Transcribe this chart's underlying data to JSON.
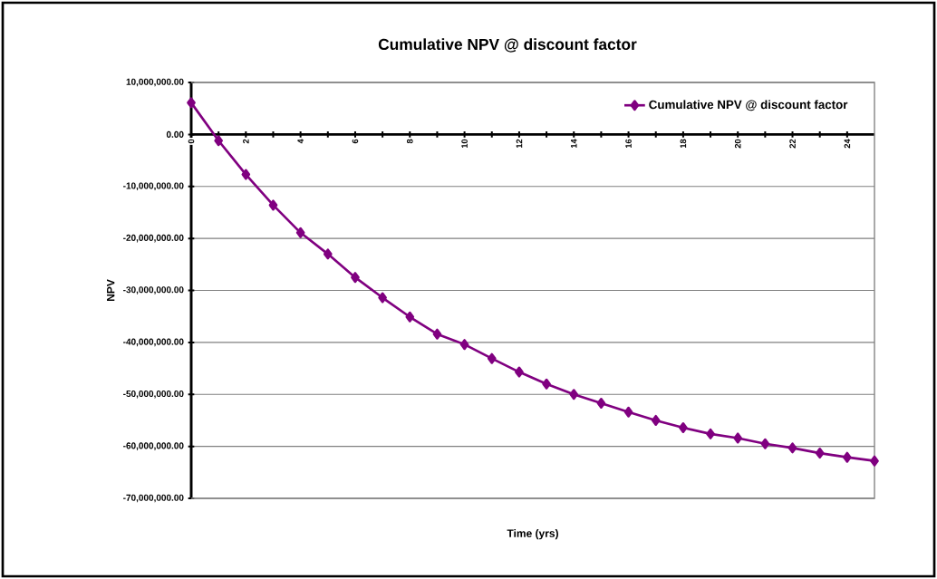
{
  "chart_data": {
    "type": "line",
    "title": "Cumulative NPV @ discount factor",
    "xlabel": "Time (yrs)",
    "ylabel": "NPV",
    "x": [
      0,
      1,
      2,
      3,
      4,
      5,
      6,
      7,
      8,
      9,
      10,
      11,
      12,
      13,
      14,
      15,
      16,
      17,
      18,
      19,
      20,
      21,
      22,
      23,
      24,
      25
    ],
    "series": [
      {
        "name": "Cumulative NPV @ discount factor",
        "color": "#800080",
        "values": [
          6100000,
          -1200000,
          -7700000,
          -13600000,
          -18900000,
          -23000000,
          -27500000,
          -31400000,
          -35100000,
          -38400000,
          -40400000,
          -43100000,
          -45700000,
          -48000000,
          -50000000,
          -51700000,
          -53400000,
          -55000000,
          -56400000,
          -57600000,
          -58400000,
          -59500000,
          -60300000,
          -61300000,
          -62100000,
          -62800000
        ]
      }
    ],
    "xlim": [
      0,
      25
    ],
    "xticks": [
      0,
      {
        "value": 1,
        "label": null
      },
      2,
      {
        "value": 3,
        "label": null
      },
      4,
      {
        "value": 5,
        "label": null
      },
      6,
      {
        "value": 7,
        "label": null
      },
      8,
      {
        "value": 9,
        "label": null
      },
      10,
      {
        "value": 11,
        "label": null
      },
      12,
      {
        "value": 13,
        "label": null
      },
      14,
      {
        "value": 15,
        "label": null
      },
      16,
      {
        "value": 17,
        "label": null
      },
      18,
      {
        "value": 19,
        "label": null
      },
      20,
      {
        "value": 21,
        "label": null
      },
      22,
      {
        "value": 23,
        "label": null
      },
      24
    ],
    "ylim": [
      -70000000,
      10000000
    ],
    "yticks": [
      {
        "value": -70000000,
        "label": "-70,000,000.00"
      },
      {
        "value": -60000000,
        "label": "-60,000,000.00"
      },
      {
        "value": -50000000,
        "label": "-50,000,000.00"
      },
      {
        "value": -40000000,
        "label": "-40,000,000.00"
      },
      {
        "value": -30000000,
        "label": "-30,000,000.00"
      },
      {
        "value": -20000000,
        "label": "-20,000,000.00"
      },
      {
        "value": -10000000,
        "label": "-10,000,000.00"
      },
      {
        "value": 0,
        "label": "0.00"
      },
      {
        "value": 10000000,
        "label": "10,000,000.00"
      }
    ],
    "grid": "y",
    "legend": "top right",
    "marker": "diamond"
  }
}
